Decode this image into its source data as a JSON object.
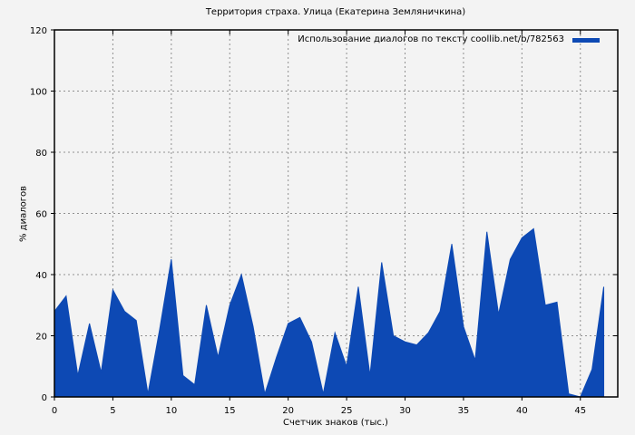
{
  "title": "Территория страха. Улица (Екатерина Земляничкина)",
  "legend": {
    "label": "Использование диалогов по тексту coollib.net/b/782563",
    "swatch_color": "#0d49b4"
  },
  "axes": {
    "xlabel": "Счетчик знаков (тыс.)",
    "ylabel": "% диалогов"
  },
  "chart_data": {
    "type": "area",
    "title": "Территория страха. Улица (Екатерина Земляничкина)",
    "series_name": "Использование диалогов по тексту coollib.net/b/782563",
    "xlabel": "Счетчик знаков (тыс.)",
    "ylabel": "% диалогов",
    "x": [
      0,
      1,
      2,
      3,
      4,
      5,
      6,
      7,
      8,
      9,
      10,
      11,
      12,
      13,
      14,
      15,
      16,
      17,
      18,
      19,
      20,
      21,
      22,
      23,
      24,
      25,
      26,
      27,
      28,
      29,
      30,
      31,
      32,
      33,
      34,
      35,
      36,
      37,
      38,
      39,
      40,
      41,
      42,
      43,
      44,
      45,
      46,
      47
    ],
    "values": [
      28,
      33,
      7,
      24,
      8,
      35,
      28,
      25,
      1,
      22,
      45,
      7,
      4,
      30,
      13,
      30,
      40,
      23,
      1,
      13,
      24,
      26,
      18,
      1,
      21,
      10,
      36,
      7,
      44,
      20,
      18,
      17,
      21,
      28,
      50,
      23,
      12,
      54,
      27,
      45,
      52,
      55,
      30,
      31,
      1,
      0,
      9,
      36
    ],
    "xlim": [
      0,
      48.2
    ],
    "ylim": [
      0,
      120
    ],
    "xticks": [
      0,
      5,
      10,
      15,
      20,
      25,
      30,
      35,
      40,
      45
    ],
    "yticks": [
      0,
      20,
      40,
      60,
      80,
      100,
      120
    ],
    "grid": true,
    "legend_position": "top-right-inside",
    "fill_color": "#0d49b4",
    "background_color": "#f3f3f3",
    "border_color": "#000000"
  }
}
